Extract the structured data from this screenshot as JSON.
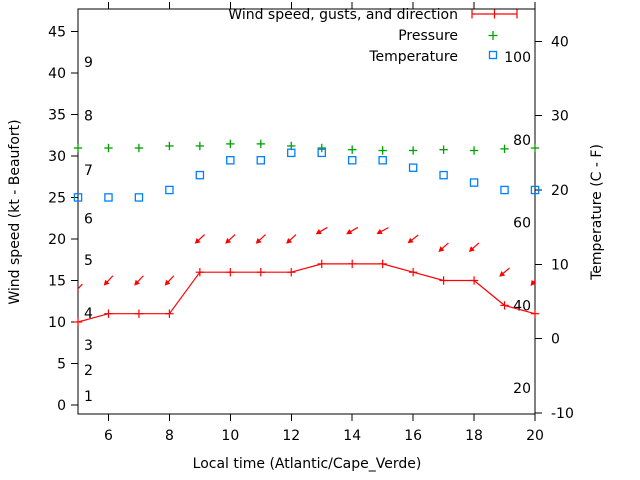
{
  "figure": {
    "legend": {
      "wind_label": "Wind speed, gusts, and direction",
      "pressure_label": "Pressure",
      "temperature_label": "Temperature"
    },
    "axis_labels": {
      "x": "Local time (Atlantic/Cape_Verde)",
      "y_left": "Wind speed (kt - Beaufort)",
      "y_right": "Temperature (C - F)"
    }
  },
  "chart_data": {
    "type": "line",
    "x_hours": [
      5,
      6,
      7,
      8,
      9,
      10,
      11,
      12,
      13,
      14,
      15,
      16,
      17,
      18,
      19,
      20
    ],
    "series": [
      {
        "name": "wind_speed",
        "legend": "Wind speed, gusts, and direction",
        "unit": "kt",
        "marker": "plus-with-line",
        "values": [
          10,
          11,
          11,
          11,
          16,
          16,
          16,
          16,
          17,
          17,
          17,
          16,
          15,
          15,
          12,
          11
        ]
      },
      {
        "name": "wind_gusts_direction",
        "unit": "kt",
        "marker": "arrow",
        "note": "arrows point toward southwest = wind blowing from northeast",
        "values": [
          14,
          15,
          15,
          15,
          20,
          20,
          20,
          20,
          21,
          21,
          21,
          20,
          19,
          19,
          16,
          15
        ],
        "arrow_point_angles_deg": [
          133,
          133,
          133,
          133,
          137,
          137,
          137,
          137,
          150,
          150,
          152,
          142,
          138,
          138,
          140,
          130
        ]
      },
      {
        "name": "pressure",
        "legend": "Pressure",
        "marker": "plus",
        "scale": "inner right scale 20-100",
        "values": [
          78,
          78,
          78,
          78.5,
          78.5,
          79,
          79,
          78.5,
          78,
          77.6,
          77.4,
          77.4,
          77.6,
          77.4,
          77.8,
          78
        ]
      },
      {
        "name": "temperature",
        "legend": "Temperature",
        "unit": "C",
        "marker": "open-square",
        "values": [
          19,
          19,
          19,
          20,
          22,
          24,
          24,
          25,
          25,
          24,
          24,
          23,
          22,
          21,
          20,
          20
        ]
      }
    ],
    "axes": {
      "x": {
        "label": "Local time (Atlantic/Cape_Verde)",
        "range": [
          5,
          20
        ],
        "ticks": [
          6,
          8,
          10,
          12,
          14,
          16,
          18,
          20
        ]
      },
      "y_left_kt": {
        "label": "Wind speed (kt - Beaufort)",
        "range": [
          -1.1,
          47.7
        ],
        "ticks": [
          0,
          5,
          10,
          15,
          20,
          25,
          30,
          35,
          40,
          45
        ]
      },
      "y_left_beaufort": {
        "labels": [
          "1",
          "2",
          "3",
          "4",
          "5",
          "6",
          "7",
          "8",
          "9"
        ],
        "kt_anchors": [
          1.1,
          4.2,
          7.2,
          11.1,
          17.5,
          22.5,
          28.3,
          34.9,
          41.3
        ]
      },
      "y_right_temp": {
        "label": "Temperature (C - F)",
        "range": [
          -10.3,
          44.4
        ],
        "ticks": [
          40,
          30,
          20,
          10,
          0,
          -10
        ]
      },
      "y_inner_pressure": {
        "ticks": [
          100,
          80,
          60,
          40,
          20
        ]
      }
    },
    "colors": {
      "wind": "#ff0000",
      "pressure": "#00a000",
      "temperature": "#0080ff",
      "axis": "#000000",
      "background": "#ffffff"
    },
    "legend_position": "top-right-inside",
    "grid": false
  }
}
